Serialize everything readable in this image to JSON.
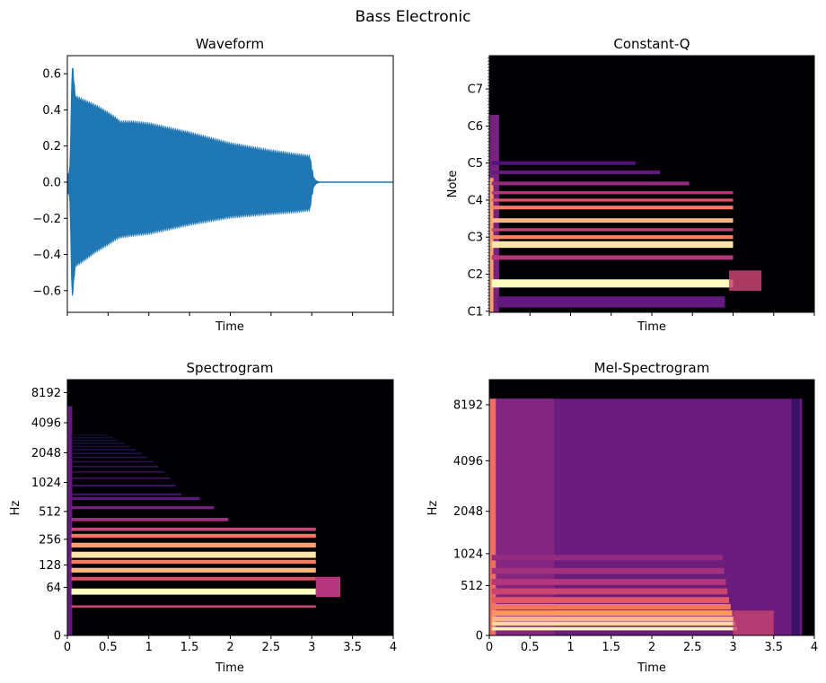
{
  "figure": {
    "title": "Bass Electronic"
  },
  "colors": {
    "waveform": "#1f77b4",
    "magma": [
      "#000004",
      "#1c1044",
      "#4f127b",
      "#812581",
      "#b5367a",
      "#e55964",
      "#fb8761",
      "#fec287",
      "#fcfdbf"
    ]
  },
  "chart_data": [
    {
      "type": "line",
      "title": "Waveform",
      "xlabel": "Time",
      "ylabel": "",
      "x_tick_labels_shown": false,
      "xlim": [
        0,
        4
      ],
      "ylim": [
        -0.72,
        0.7
      ],
      "yticks": [
        -0.6,
        -0.4,
        -0.2,
        0.0,
        0.2,
        0.4,
        0.6
      ],
      "ytick_labels": [
        "−0.6",
        "−0.4",
        "−0.2",
        "0.0",
        "0.2",
        "0.4",
        "0.6"
      ],
      "envelope": {
        "x": [
          0,
          0.03,
          0.05,
          0.06,
          0.07,
          0.09,
          0.1,
          0.2,
          0.35,
          0.5,
          0.6,
          0.65,
          0.8,
          1.0,
          1.5,
          2.0,
          2.5,
          2.8,
          2.98,
          3.0,
          3.02,
          3.05,
          3.1,
          4.0
        ],
        "upper": [
          0.03,
          0.08,
          0.5,
          0.64,
          0.62,
          0.52,
          0.47,
          0.45,
          0.42,
          0.38,
          0.35,
          0.33,
          0.33,
          0.32,
          0.27,
          0.21,
          0.17,
          0.15,
          0.14,
          0.08,
          0.03,
          0.01,
          0.0,
          0.0
        ],
        "lower": [
          -0.03,
          -0.1,
          -0.52,
          -0.64,
          -0.6,
          -0.5,
          -0.46,
          -0.43,
          -0.38,
          -0.34,
          -0.31,
          -0.3,
          -0.29,
          -0.28,
          -0.23,
          -0.19,
          -0.17,
          -0.16,
          -0.15,
          -0.08,
          -0.03,
          -0.01,
          0.0,
          0.0
        ]
      }
    },
    {
      "type": "heatmap",
      "title": "Constant-Q",
      "xlabel": "Time",
      "ylabel": "Note",
      "x_tick_labels_shown": false,
      "xlim": [
        0,
        4
      ],
      "yticks": [
        "C1",
        "C2",
        "C3",
        "C4",
        "C5",
        "C6",
        "C7"
      ],
      "bands": [
        {
          "y": 1.75,
          "h": 0.22,
          "intensity": 1.0
        },
        {
          "y": 2.8,
          "h": 0.18,
          "intensity": 0.95
        },
        {
          "y": 3.45,
          "h": 0.12,
          "intensity": 0.85
        },
        {
          "y": 3.0,
          "h": 0.1,
          "intensity": 0.75
        },
        {
          "y": 3.8,
          "h": 0.1,
          "intensity": 0.72
        },
        {
          "y": 4.0,
          "h": 0.08,
          "intensity": 0.6
        },
        {
          "y": 3.2,
          "h": 0.08,
          "intensity": 0.55
        },
        {
          "y": 2.45,
          "h": 0.12,
          "intensity": 0.5
        },
        {
          "y": 4.2,
          "h": 0.08,
          "intensity": 0.5
        },
        {
          "y": 4.45,
          "h": 0.1,
          "intensity": 0.42
        },
        {
          "y": 4.75,
          "h": 0.1,
          "intensity": 0.3
        },
        {
          "y": 5.0,
          "h": 0.1,
          "intensity": 0.25
        }
      ]
    },
    {
      "type": "heatmap",
      "title": "Spectrogram",
      "xlabel": "Time",
      "ylabel": "Hz",
      "xlim": [
        0,
        4
      ],
      "xticks": [
        0,
        0.5,
        1,
        1.5,
        2,
        2.5,
        3,
        3.5,
        4
      ],
      "xtick_labels": [
        "0",
        "0.5",
        "1",
        "1.5",
        "2",
        "2.5",
        "3",
        "3.5",
        "4"
      ],
      "yticks": [
        0,
        64,
        128,
        256,
        512,
        1024,
        2048,
        4096,
        8192
      ],
      "bands": [
        {
          "f": 55,
          "h": 0.16,
          "intensity": 1.0
        },
        {
          "f": 170,
          "h": 0.12,
          "intensity": 0.95
        },
        {
          "f": 110,
          "h": 0.1,
          "intensity": 0.85
        },
        {
          "f": 220,
          "h": 0.09,
          "intensity": 0.8
        },
        {
          "f": 140,
          "h": 0.08,
          "intensity": 0.72
        },
        {
          "f": 280,
          "h": 0.07,
          "intensity": 0.7
        },
        {
          "f": 330,
          "h": 0.06,
          "intensity": 0.55
        },
        {
          "f": 85,
          "h": 0.08,
          "intensity": 0.6
        },
        {
          "f": 30,
          "h": 0.08,
          "intensity": 0.55
        },
        {
          "f": 420,
          "h": 0.06,
          "intensity": 0.45
        },
        {
          "f": 560,
          "h": 0.05,
          "intensity": 0.35
        },
        {
          "f": 700,
          "h": 0.05,
          "intensity": 0.28
        }
      ]
    },
    {
      "type": "heatmap",
      "title": "Mel-Spectrogram",
      "xlabel": "Time",
      "ylabel": "Hz",
      "xlim": [
        0,
        4
      ],
      "xticks": [
        0,
        0.5,
        1,
        1.5,
        2,
        2.5,
        3,
        3.5,
        4
      ],
      "xtick_labels": [
        "0",
        "0.5",
        "1",
        "1.5",
        "2",
        "2.5",
        "3",
        "3.5",
        "4"
      ],
      "yticks": [
        0,
        512,
        1024,
        2048,
        4096,
        8192
      ],
      "fmax": 11025
    }
  ]
}
